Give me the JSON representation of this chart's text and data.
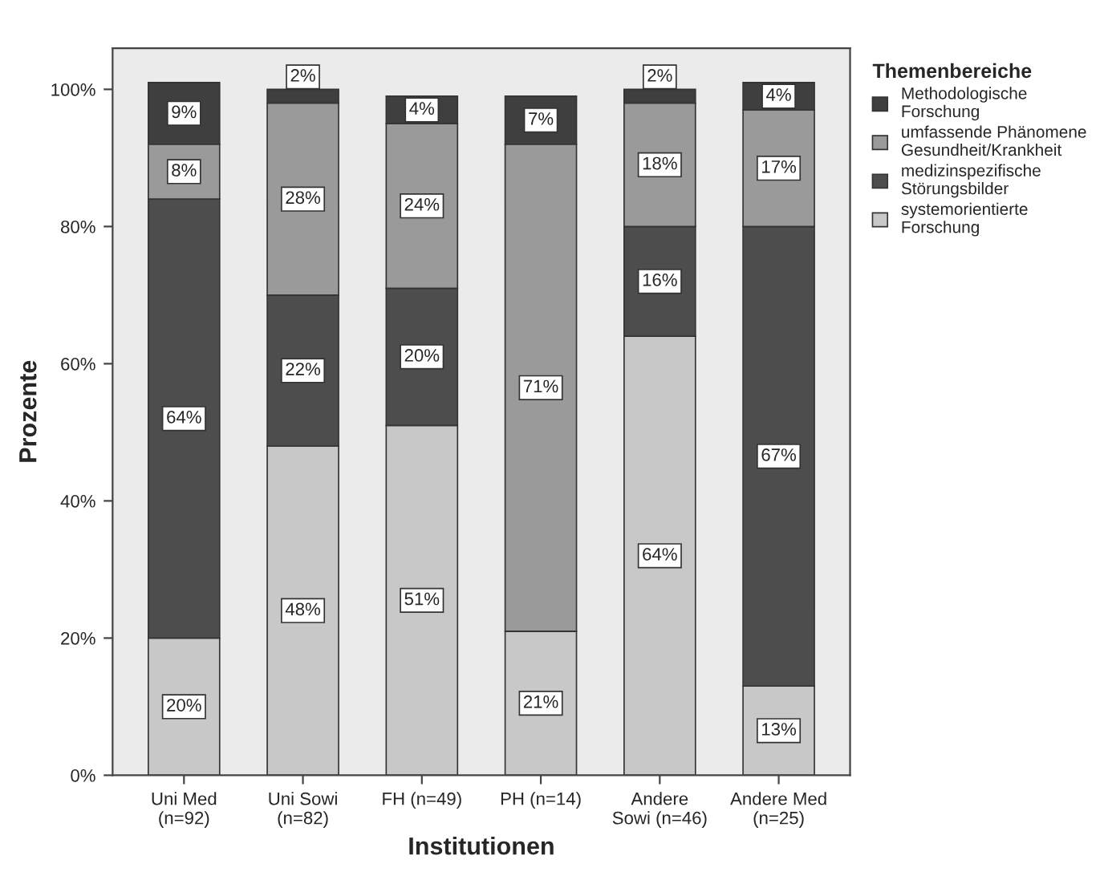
{
  "chart_data": {
    "type": "bar",
    "stacked": true,
    "xlabel": "Institutionen",
    "ylabel": "Prozente",
    "legend_title": "Themenbereiche",
    "legend": "right",
    "categories": [
      "Uni Med\n(n=92)",
      "Uni Sowi\n(n=82)",
      "FH (n=49)",
      "PH (n=14)",
      "Andere\nSowi (n=46)",
      "Andere Med\n(n=25)"
    ],
    "series": [
      {
        "name": "systemorientierte\nForschung",
        "color": "#c8c8c8",
        "values": [
          20,
          48,
          51,
          21,
          64,
          13
        ],
        "value_labels": [
          "20%",
          "48%",
          "51%",
          "21%",
          "64%",
          "13%"
        ]
      },
      {
        "name": "medizinspezifische\nStörungsbilder",
        "color": "#4d4d4d",
        "values": [
          64,
          22,
          20,
          0,
          16,
          67
        ],
        "value_labels": [
          "64%",
          "22%",
          "20%",
          null,
          "16%",
          "67%"
        ]
      },
      {
        "name": "umfassende Phänomene\nGesundheit/Krankheit",
        "color": "#9a9a9a",
        "values": [
          8,
          28,
          24,
          71,
          18,
          17
        ],
        "value_labels": [
          "8%",
          "28%",
          "24%",
          "71%",
          "18%",
          "17%"
        ]
      },
      {
        "name": "Methodologische\nForschung",
        "color": "#3f3f3f",
        "values": [
          9,
          2,
          4,
          7,
          2,
          4
        ],
        "value_labels": [
          "9%",
          "2%",
          "4%",
          "7%",
          "2%",
          "4%"
        ]
      }
    ],
    "ylim": [
      0,
      106
    ],
    "yticks": [
      {
        "value": 0,
        "label": "0%"
      },
      {
        "value": 20,
        "label": "20%"
      },
      {
        "value": 40,
        "label": "40%"
      },
      {
        "value": 60,
        "label": "60%"
      },
      {
        "value": 80,
        "label": "80%"
      },
      {
        "value": 100,
        "label": "100%"
      }
    ],
    "grid": false
  }
}
